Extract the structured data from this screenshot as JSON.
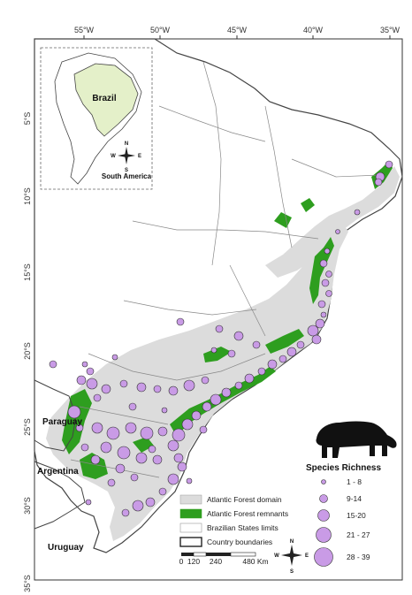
{
  "top_ticks": [
    "55°W",
    "50°W",
    "45°W",
    "40°W",
    "35°W"
  ],
  "left_ticks": [
    "5°S",
    "10°S",
    "15°S",
    "20°S",
    "25°S",
    "30°S",
    "35°S"
  ],
  "inset": {
    "country_label": "Brazil",
    "continent_label": "South America"
  },
  "country_labels": {
    "paraguay": "Paraguay",
    "argentina": "Argentina",
    "uruguay": "Uruguay"
  },
  "legend": {
    "items": [
      {
        "label": "Atlantic Forest domain",
        "color": "#dcdcdc"
      },
      {
        "label": "Atlantic Forest remnants",
        "color": "#2e9e1f"
      },
      {
        "label": "Brazilian States limits",
        "color": "#ffffff"
      },
      {
        "label": "Country boundaries",
        "color": "#ffffff"
      }
    ],
    "scale_labels": [
      "0",
      "120",
      "240",
      "480 Km"
    ]
  },
  "compass": {
    "n": "N",
    "s": "S",
    "e": "E",
    "w": "W"
  },
  "richness": {
    "title": "Species Richness",
    "classes": [
      "1 - 8",
      "9-14",
      "15-20",
      "21 - 27",
      "28 - 39"
    ],
    "color": "#c99be6"
  }
}
